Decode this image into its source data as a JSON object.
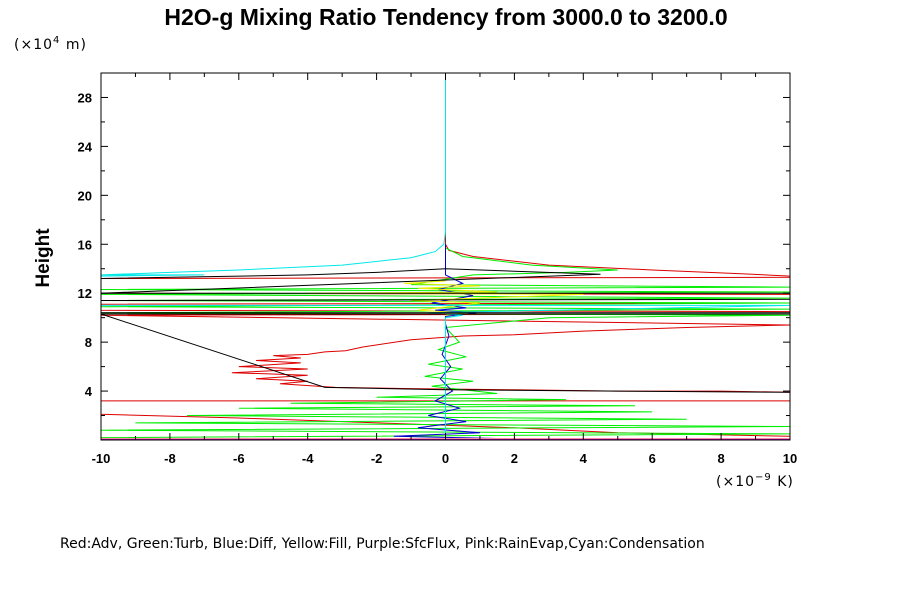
{
  "chart_data": {
    "type": "line",
    "title": "H2O-g Mixing Ratio Tendency from 3000.0 to 3200.0",
    "ylabel": "Height",
    "y_unit": {
      "prefix": "(×10",
      "exp": "4",
      "suffix": " m)"
    },
    "x_unit": {
      "prefix": "(×10",
      "exp": "−9",
      "suffix": " K)"
    },
    "xlim": [
      -10,
      10
    ],
    "ylim": [
      0,
      30
    ],
    "xticks": [
      -10,
      -8,
      -6,
      -4,
      -2,
      0,
      2,
      4,
      6,
      8,
      10
    ],
    "xtick_labels": [
      "-10",
      "-8",
      "-6",
      "-4",
      "-2",
      "0",
      "2",
      "4",
      "6",
      "8",
      "10"
    ],
    "yticks": [
      4,
      8,
      12,
      16,
      20,
      24,
      28
    ],
    "ytick_labels": [
      "4",
      "8",
      "12",
      "16",
      "20",
      "24",
      "28"
    ],
    "legend_text": "Red:Adv, Green:Turb, Blue:Diff, Yellow:Fill, Purple:SfcFlux, Pink:RainEvap,Cyan:Condensation",
    "legend_position": "bottom",
    "colors": {
      "Adv": "#dd0000",
      "Turb": "#00ee00",
      "Diff": "#0000cc",
      "Fill": "#eeee00",
      "SfcFlux": "#aa00aa",
      "RainEvap": "#ff88aa",
      "Condensation": "#00e8e8",
      "Ensemble": "#000000"
    },
    "series": [
      {
        "name": "Adv",
        "color": "#dd0000",
        "points": [
          [
            0,
            30
          ],
          [
            0,
            16
          ],
          [
            0.1,
            15.5
          ],
          [
            0.8,
            15.0
          ],
          [
            3.0,
            14.3
          ],
          [
            6.0,
            13.9
          ],
          [
            8.5,
            13.6
          ],
          [
            10,
            13.4
          ],
          [
            10,
            13.3
          ],
          [
            -10,
            13.2
          ],
          [
            -10,
            12.0
          ],
          [
            10,
            11.9
          ],
          [
            10,
            11.2
          ],
          [
            -10,
            11.1
          ],
          [
            -10,
            10.6
          ],
          [
            10,
            10.5
          ],
          [
            10,
            10.3
          ],
          [
            -10,
            10.2
          ],
          [
            10,
            9.4
          ],
          [
            7.0,
            9.2
          ],
          [
            4.0,
            8.9
          ],
          [
            2.0,
            8.6
          ],
          [
            0.5,
            8.5
          ],
          [
            -1.0,
            8.2
          ],
          [
            -2.4,
            7.6
          ],
          [
            -2.9,
            7.3
          ],
          [
            -3.5,
            7.2
          ],
          [
            -4.0,
            7.0
          ],
          [
            -5.0,
            6.9
          ],
          [
            -4.2,
            6.7
          ],
          [
            -5.5,
            6.5
          ],
          [
            -4.2,
            6.3
          ],
          [
            -6.0,
            6.0
          ],
          [
            -4.0,
            5.8
          ],
          [
            -6.2,
            5.5
          ],
          [
            -4.0,
            5.3
          ],
          [
            -5.5,
            5.0
          ],
          [
            -4.0,
            4.8
          ],
          [
            -4.8,
            4.6
          ],
          [
            -3.2,
            4.3
          ],
          [
            -1.0,
            4.2
          ],
          [
            2.0,
            4.1
          ],
          [
            5.0,
            4.0
          ],
          [
            8.0,
            4.0
          ],
          [
            10,
            3.9
          ],
          [
            10,
            3.2
          ],
          [
            -10,
            3.2
          ],
          [
            -10,
            2.1
          ],
          [
            -6.0,
            1.8
          ],
          [
            -3.0,
            1.5
          ],
          [
            0,
            1.2
          ],
          [
            2.0,
            1.0
          ],
          [
            5.0,
            0.6
          ],
          [
            10,
            0.3
          ]
        ]
      },
      {
        "name": "Turb",
        "color": "#00ee00",
        "points": [
          [
            0,
            15.7
          ],
          [
            0.5,
            15.0
          ],
          [
            2.5,
            14.3
          ],
          [
            5.0,
            13.9
          ],
          [
            3.5,
            13.7
          ],
          [
            0.8,
            13.5
          ],
          [
            -1.0,
            12.7
          ],
          [
            10,
            12.5
          ],
          [
            -10,
            12.3
          ],
          [
            10,
            12.1
          ],
          [
            -10,
            11.9
          ],
          [
            10,
            11.6
          ],
          [
            -10,
            11.4
          ],
          [
            10,
            11.2
          ],
          [
            -10,
            10.9
          ],
          [
            10,
            10.7
          ],
          [
            -10,
            10.4
          ],
          [
            10,
            10.2
          ],
          [
            3.0,
            10.0
          ],
          [
            0,
            9.2
          ],
          [
            0.4,
            8.0
          ],
          [
            -0.2,
            7.4
          ],
          [
            0.6,
            6.8
          ],
          [
            -0.5,
            6.2
          ],
          [
            0.5,
            5.8
          ],
          [
            -0.6,
            5.2
          ],
          [
            0.8,
            4.8
          ],
          [
            -0.4,
            4.4
          ],
          [
            1.5,
            3.8
          ],
          [
            -2.0,
            3.5
          ],
          [
            3.5,
            3.3
          ],
          [
            -4.5,
            3.0
          ],
          [
            5.5,
            2.8
          ],
          [
            -6.0,
            2.6
          ],
          [
            6.0,
            2.3
          ],
          [
            -7.5,
            2.0
          ],
          [
            7.0,
            1.7
          ],
          [
            -9.0,
            1.4
          ],
          [
            10,
            1.1
          ],
          [
            -10,
            0.8
          ],
          [
            10,
            0.5
          ],
          [
            -10,
            0.2
          ]
        ]
      },
      {
        "name": "Diff",
        "color": "#0000cc",
        "points": [
          [
            0,
            16
          ],
          [
            0,
            13.5
          ],
          [
            0.5,
            12.8
          ],
          [
            -0.2,
            12.3
          ],
          [
            0.8,
            11.8
          ],
          [
            -0.4,
            11.2
          ],
          [
            0.6,
            10.8
          ],
          [
            -0.3,
            10.6
          ],
          [
            0.9,
            10.4
          ],
          [
            0,
            10.1
          ],
          [
            0,
            9.5
          ],
          [
            0.1,
            8.5
          ],
          [
            -0.1,
            7.0
          ],
          [
            0.15,
            6.0
          ],
          [
            -0.15,
            5.0
          ],
          [
            0.2,
            4.0
          ],
          [
            -0.3,
            3.2
          ],
          [
            0.4,
            2.6
          ],
          [
            -0.5,
            2.0
          ],
          [
            0.6,
            1.5
          ],
          [
            -0.8,
            1.0
          ],
          [
            1.0,
            0.6
          ],
          [
            -1.5,
            0.3
          ],
          [
            2.0,
            0.1
          ]
        ]
      },
      {
        "name": "Fill",
        "color": "#eeee00",
        "points": [
          [
            0,
            13.0
          ],
          [
            -1.2,
            12.8
          ],
          [
            1.0,
            12.6
          ],
          [
            -0.8,
            12.4
          ],
          [
            1.5,
            12.1
          ],
          [
            -4.0,
            12.0
          ],
          [
            4.0,
            11.9
          ],
          [
            -1.0,
            11.4
          ],
          [
            1.0,
            11.2
          ],
          [
            -0.8,
            10.6
          ],
          [
            0.6,
            10.4
          ],
          [
            0,
            10.2
          ]
        ]
      },
      {
        "name": "SfcFlux",
        "color": "#aa00aa",
        "points": [
          [
            -10,
            0.05
          ],
          [
            10,
            0.05
          ]
        ]
      },
      {
        "name": "RainEvap",
        "color": "#ff88aa",
        "points": [
          [
            -10,
            0.12
          ],
          [
            10,
            0.12
          ]
        ]
      },
      {
        "name": "Condensation",
        "color": "#00e8e8",
        "points": [
          [
            0,
            30
          ],
          [
            0,
            17
          ],
          [
            -0.05,
            16
          ],
          [
            -0.3,
            15.4
          ],
          [
            -1.0,
            14.9
          ],
          [
            -3.0,
            14.3
          ],
          [
            -6.0,
            13.9
          ],
          [
            -8.0,
            13.7
          ],
          [
            -10,
            13.5
          ],
          [
            -10,
            13.5
          ],
          [
            -7.0,
            13.5
          ],
          [
            -10,
            13.4
          ],
          [
            -10,
            11.0
          ],
          [
            10,
            11.0
          ],
          [
            -0.5,
            10.4
          ],
          [
            0.5,
            10.2
          ],
          [
            0,
            10.0
          ],
          [
            0,
            0.2
          ]
        ]
      },
      {
        "name": "Ensemble",
        "color": "#000000",
        "points": [
          [
            -10,
            13.2
          ],
          [
            -4.0,
            13.5
          ],
          [
            -2.0,
            13.7
          ],
          [
            0,
            14.0
          ],
          [
            2.0,
            13.8
          ],
          [
            4.0,
            13.6
          ],
          [
            4.5,
            13.55
          ],
          [
            -10,
            12.0
          ],
          [
            10,
            12.0
          ],
          [
            10,
            11.5
          ],
          [
            -10,
            11.4
          ],
          [
            -10,
            10.4
          ],
          [
            10,
            10.4
          ],
          [
            10,
            10.3
          ],
          [
            -10,
            10.3
          ],
          [
            -3.5,
            4.3
          ],
          [
            0,
            4.1
          ],
          [
            5.0,
            4.0
          ],
          [
            10,
            3.9
          ]
        ]
      }
    ]
  }
}
